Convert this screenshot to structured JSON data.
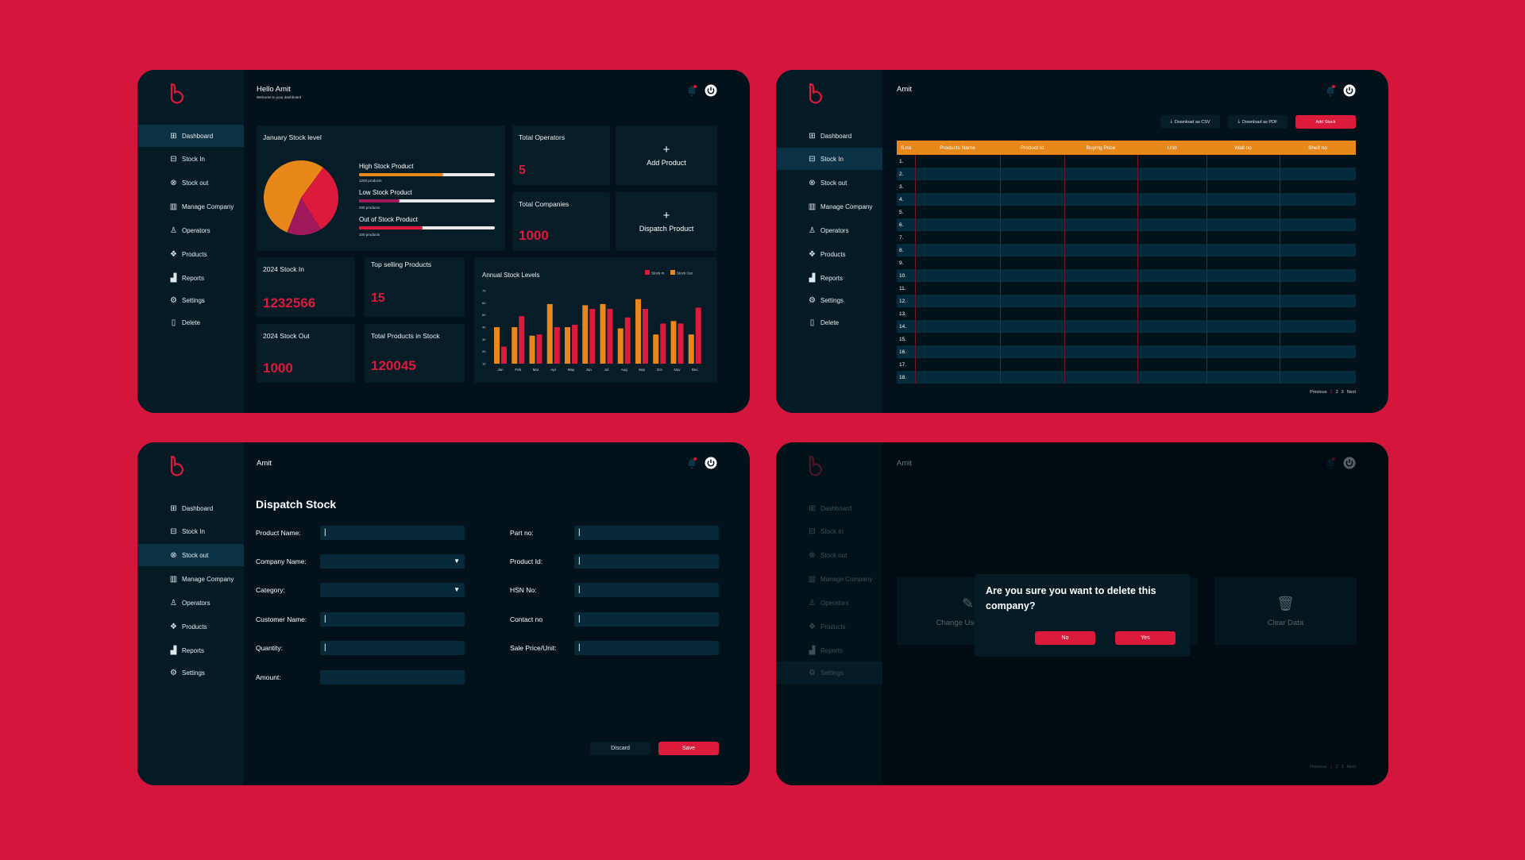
{
  "colors": {
    "background": "#d4163c",
    "accent_red": "#dc1a3c",
    "accent_orange": "#e8871a",
    "accent_purple": "#a0185c"
  },
  "sidebar_labels": {
    "dashboard": "Dashboard",
    "stock_in": "Stock In",
    "stock_out": "Stock out",
    "manage_company": "Manage Company",
    "operators": "Operators",
    "products": "Products",
    "reports": "Reports",
    "settings": "Settings",
    "delete": "Delete"
  },
  "dashboard": {
    "greeting": "Hello Amit",
    "subtitle": "Welcome to your dashboard",
    "january": {
      "title": "January Stock level",
      "pie": [
        {
          "name": "High Stock Product",
          "share": 0.54,
          "color": "#e8871a"
        },
        {
          "name": "Out of Stock Product",
          "share": 0.31,
          "color": "#dc1a3c"
        },
        {
          "name": "Low Stock Product",
          "share": 0.15,
          "color": "#a0185c"
        }
      ],
      "bars": [
        {
          "label": "High Stock Product",
          "sub": "1200 products",
          "progress": 0.62,
          "color": "#e8871a"
        },
        {
          "label": "Low Stock Product",
          "sub": "200 products",
          "progress": 0.3,
          "color": "#a0185c"
        },
        {
          "label": "Out of Stock Product",
          "sub": "100 products",
          "progress": 0.47,
          "color": "#dc1a3c"
        }
      ]
    },
    "total_operators": {
      "title": "Total Operators",
      "value": "5"
    },
    "total_companies": {
      "title": "Total Companies",
      "value": "1000"
    },
    "add_product": {
      "plus": "+",
      "label": "Add Product"
    },
    "dispatch_product": {
      "plus": "+",
      "label": "Dispatch Product"
    },
    "stock_in_2024": {
      "title": "2024 Stock In",
      "value": "1232566"
    },
    "stock_out_2024": {
      "title": "2024 Stock Out",
      "value": "1000"
    },
    "top_selling": {
      "title": "Top selling Products",
      "value": "15"
    },
    "total_products": {
      "title": "Total Products in Stock",
      "value": "120045"
    }
  },
  "chart_data": {
    "type": "bar",
    "title": "Annual Stock Levels",
    "categories": [
      "Jan",
      "Feb",
      "Mar",
      "Apr",
      "May",
      "Jun",
      "Jul",
      "Aug",
      "Sep",
      "Oct",
      "Nov",
      "Dec"
    ],
    "series": [
      {
        "name": "Stock Out",
        "color": "#e8871a",
        "values": [
          40,
          40,
          33,
          59,
          40,
          58,
          59,
          39,
          63,
          34,
          45,
          34
        ]
      },
      {
        "name": "Stock In",
        "color": "#dc1a3c",
        "values": [
          24,
          49,
          34,
          40,
          42,
          55,
          55,
          48,
          55,
          43,
          43,
          56
        ]
      }
    ],
    "legend_order": [
      "Stock In",
      "Stock Out"
    ],
    "yticks": [
      70,
      60,
      50,
      40,
      30,
      20,
      10
    ],
    "ylim": [
      10,
      70
    ],
    "legend": "top-right",
    "grid": false
  },
  "stock_in_page": {
    "user": "Amit",
    "download_csv": "Download as CSV",
    "download_pdf": "Download as PDF",
    "add_stock": "Add Stock",
    "columns": [
      "S.no",
      "Products Name",
      "Product Id",
      "Buying Price",
      "Unit",
      "Wall no",
      "Shelf no"
    ],
    "rows": [
      "1.",
      "2.",
      "3.",
      "4.",
      "5.",
      "6.",
      "7.",
      "8.",
      "9.",
      "10.",
      "11.",
      "12.",
      "13.",
      "14.",
      "15.",
      "16.",
      "17.",
      "18."
    ],
    "pager": {
      "previous": "Previous",
      "pages": [
        "1",
        "2",
        "3"
      ],
      "next": "Next"
    }
  },
  "dispatch_page": {
    "user": "Amit",
    "title": "Dispatch Stock",
    "left_fields": [
      {
        "label": "Product Name:",
        "value": "|"
      },
      {
        "label": "Company Name:",
        "value": "",
        "dropdown": true
      },
      {
        "label": "Category:",
        "value": "",
        "dropdown": true
      },
      {
        "label": "Customer Name:",
        "value": "|"
      },
      {
        "label": "Quantity:",
        "value": "|"
      },
      {
        "label": "Amount:",
        "value": ""
      }
    ],
    "right_fields": [
      {
        "label": "Part no:",
        "value": "|"
      },
      {
        "label": "Product Id:",
        "value": "|"
      },
      {
        "label": "HSN No:",
        "value": "|"
      },
      {
        "label": "Contact no",
        "value": "|"
      },
      {
        "label": "Sale Price/Unit:",
        "value": "|"
      }
    ],
    "discard": "Discard",
    "save": "Save"
  },
  "settings_page": {
    "user": "Amit",
    "change_user": "Change Username",
    "clear_data": "Clear Data",
    "dialog": {
      "message": "Are you sure you want to delete this company?",
      "no": "No",
      "yes": "Yes"
    },
    "pager": {
      "previous": "Previous",
      "pages": [
        "1",
        "2",
        "3"
      ],
      "next": "Next"
    }
  }
}
